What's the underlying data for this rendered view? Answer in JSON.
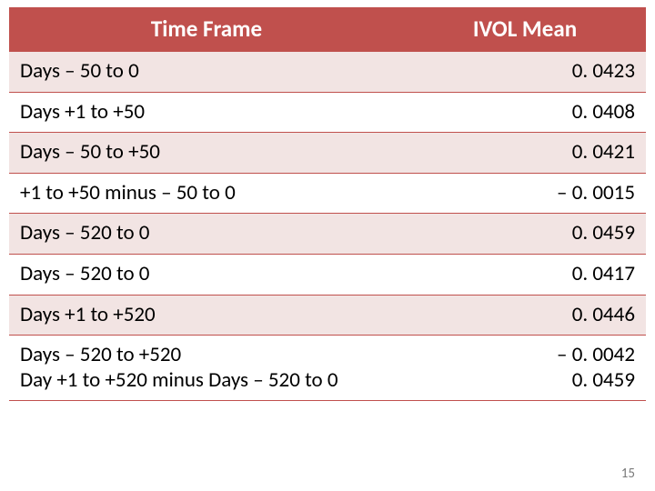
{
  "table": {
    "header_bg": "#c0504d",
    "header_fg": "#ffffff",
    "row_bg_a": "#f2e4e3",
    "row_bg_b": "#ffffff",
    "border_color": "#c0504d",
    "columns": [
      {
        "key": "tf",
        "label": "Time Frame"
      },
      {
        "key": "iv",
        "label": "IVOL Mean"
      }
    ],
    "rows": [
      {
        "tf": "Days – 50 to 0",
        "iv": "0. 0423"
      },
      {
        "tf": "Days +1 to +50",
        "iv": "0. 0408"
      },
      {
        "tf": "Days – 50 to +50",
        "iv": "0. 0421"
      },
      {
        "tf": "+1 to +50 minus – 50 to 0",
        "iv": "– 0. 0015"
      },
      {
        "tf": "Days – 520 to 0",
        "iv": "0. 0459"
      },
      {
        "tf": "Days – 520 to 0",
        "iv": "0. 0417"
      },
      {
        "tf": "Days +1 to +520",
        "iv": "0. 0446"
      },
      {
        "tf": "Days – 520 to +520\nDay +1 to +520 minus Days – 520 to 0",
        "iv": "– 0. 0042\n0. 0459"
      }
    ]
  },
  "page_number": "15"
}
